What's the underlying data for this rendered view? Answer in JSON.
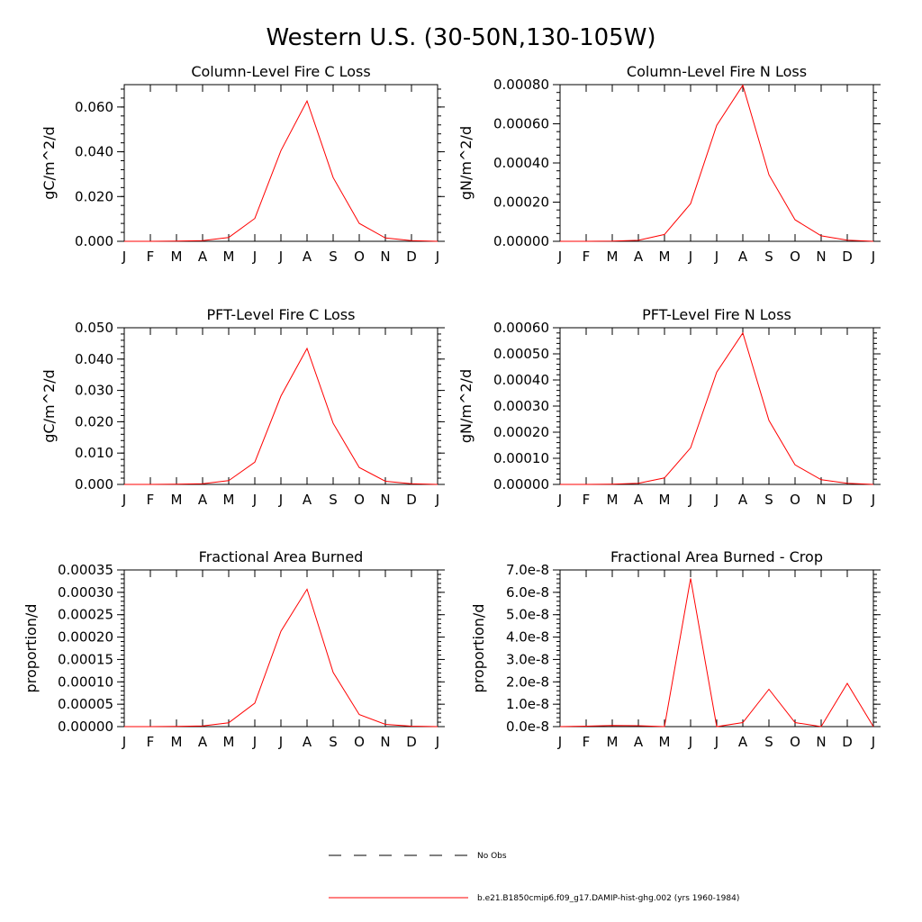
{
  "figure": {
    "title": "Western U.S. (30-50N,130-105W)"
  },
  "legend": {
    "entries": [
      {
        "label": "No Obs",
        "style": "dashed",
        "color": "#000000"
      },
      {
        "label": "b.e21.B1850cmip6.f09_g17.DAMIP-hist-ghg.002 (yrs 1960-1984)",
        "style": "solid",
        "color": "#ff0000"
      }
    ]
  },
  "chart_data": [
    {
      "type": "line",
      "title": "Column-Level Fire C Loss",
      "ylabel": "gC/m^2/d",
      "categories": [
        "J",
        "F",
        "M",
        "A",
        "M",
        "J",
        "J",
        "A",
        "S",
        "O",
        "N",
        "D",
        "J"
      ],
      "ylim": [
        0,
        0.07
      ],
      "yticks": [
        "0.000",
        "0.020",
        "0.040",
        "0.060"
      ],
      "ytick_values": [
        0,
        0.02,
        0.04,
        0.06
      ],
      "series": [
        {
          "color": "#ff0000",
          "values": [
            0.0,
            0.0,
            0.0001,
            0.0003,
            0.0017,
            0.0102,
            0.0405,
            0.0627,
            0.0285,
            0.008,
            0.0015,
            0.0003,
            0.0
          ]
        }
      ]
    },
    {
      "type": "line",
      "title": "Column-Level Fire N Loss",
      "ylabel": "gN/m^2/d",
      "categories": [
        "J",
        "F",
        "M",
        "A",
        "M",
        "J",
        "J",
        "A",
        "S",
        "O",
        "N",
        "D",
        "J"
      ],
      "ylim": [
        0,
        0.0008
      ],
      "yticks": [
        "0.00000",
        "0.00020",
        "0.00040",
        "0.00060",
        "0.00080"
      ],
      "ytick_values": [
        0,
        0.0002,
        0.0004,
        0.0006,
        0.0008
      ],
      "series": [
        {
          "color": "#ff0000",
          "values": [
            0.0,
            0.0,
            1e-06,
            5e-06,
            3.5e-05,
            0.000192,
            0.000592,
            0.000797,
            0.00034,
            0.00011,
            2.8e-05,
            6e-06,
            0.0
          ]
        }
      ]
    },
    {
      "type": "line",
      "title": "PFT-Level Fire C Loss",
      "ylabel": "gC/m^2/d",
      "categories": [
        "J",
        "F",
        "M",
        "A",
        "M",
        "J",
        "J",
        "A",
        "S",
        "O",
        "N",
        "D",
        "J"
      ],
      "ylim": [
        0,
        0.05
      ],
      "yticks": [
        "0.000",
        "0.010",
        "0.020",
        "0.030",
        "0.040",
        "0.050"
      ],
      "ytick_values": [
        0,
        0.01,
        0.02,
        0.03,
        0.04,
        0.05
      ],
      "series": [
        {
          "color": "#ff0000",
          "values": [
            0.0,
            0.0,
            0.0001,
            0.0002,
            0.0012,
            0.0071,
            0.0282,
            0.0434,
            0.0195,
            0.0054,
            0.001,
            0.0002,
            0.0
          ]
        }
      ]
    },
    {
      "type": "line",
      "title": "PFT-Level Fire N Loss",
      "ylabel": "gN/m^2/d",
      "categories": [
        "J",
        "F",
        "M",
        "A",
        "M",
        "J",
        "J",
        "A",
        "S",
        "O",
        "N",
        "D",
        "J"
      ],
      "ylim": [
        0,
        0.0006
      ],
      "yticks": [
        "0.00000",
        "0.00010",
        "0.00020",
        "0.00030",
        "0.00040",
        "0.00050",
        "0.00060"
      ],
      "ytick_values": [
        0,
        0.0001,
        0.0002,
        0.0003,
        0.0004,
        0.0005,
        0.0006
      ],
      "series": [
        {
          "color": "#ff0000",
          "values": [
            0.0,
            0.0,
            1e-06,
            4e-06,
            2.5e-05,
            0.00014,
            0.00043,
            0.00058,
            0.000245,
            7.5e-05,
            1.8e-05,
            4e-06,
            0.0
          ]
        }
      ]
    },
    {
      "type": "line",
      "title": "Fractional Area Burned",
      "ylabel": "proportion/d",
      "categories": [
        "J",
        "F",
        "M",
        "A",
        "M",
        "J",
        "J",
        "A",
        "S",
        "O",
        "N",
        "D",
        "J"
      ],
      "ylim": [
        0,
        0.00035
      ],
      "yticks": [
        "0.00000",
        "0.00005",
        "0.00010",
        "0.00015",
        "0.00020",
        "0.00025",
        "0.00030",
        "0.00035"
      ],
      "ytick_values": [
        0,
        5e-05,
        0.0001,
        0.00015,
        0.0002,
        0.00025,
        0.0003,
        0.00035
      ],
      "series": [
        {
          "color": "#ff0000",
          "values": [
            0.0,
            0.0,
            5e-07,
            1.5e-06,
            8.5e-06,
            5.25e-05,
            0.000213,
            0.000307,
            0.000121,
            2.7e-05,
            5e-06,
            1e-06,
            0.0
          ]
        }
      ]
    },
    {
      "type": "line",
      "title": "Fractional Area Burned - Crop",
      "ylabel": "proportion/d",
      "categories": [
        "J",
        "F",
        "M",
        "A",
        "M",
        "J",
        "J",
        "A",
        "S",
        "O",
        "N",
        "D",
        "J"
      ],
      "ylim": [
        0,
        7e-08
      ],
      "yticks": [
        "0.0e-8",
        "1.0e-8",
        "2.0e-8",
        "3.0e-8",
        "4.0e-8",
        "5.0e-8",
        "6.0e-8",
        "7.0e-8"
      ],
      "ytick_values": [
        0,
        1e-08,
        2e-08,
        3e-08,
        4e-08,
        5e-08,
        6e-08,
        7e-08
      ],
      "series": [
        {
          "color": "#ff0000",
          "values": [
            0.0,
            2e-10,
            5e-10,
            4e-10,
            0.0,
            6.62e-08,
            0.0,
            1.8e-09,
            1.67e-08,
            1.8e-09,
            0.0,
            1.93e-08,
            0.0
          ]
        }
      ]
    }
  ]
}
